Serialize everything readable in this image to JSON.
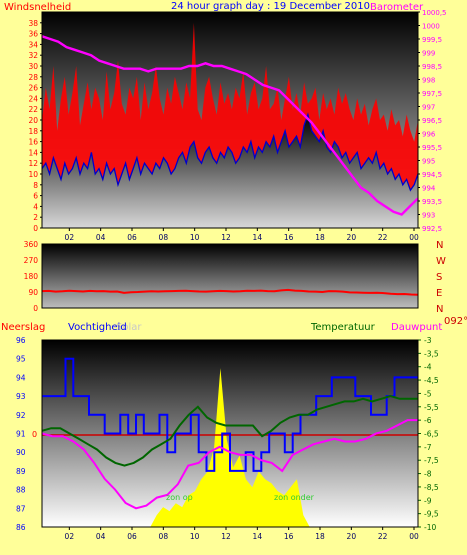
{
  "colors": {
    "background": "#ffff99",
    "windspeed": "#ff0000",
    "windspeed_avg": "#0000cc",
    "barometer": "#ff00ff",
    "wind_direction": "#ff0000",
    "humidity": "#0000ff",
    "temperature": "#006600",
    "dewpoint": "#ff00ff",
    "solar": "#ffff00",
    "zero_line": "#cc0000"
  },
  "chart_data": [
    {
      "type": "line",
      "title": "24 hour graph day : 19 December 2010",
      "left_axis_label": "Windsnelheid",
      "right_axis_label": "Barometer",
      "x_ticks": [
        "02",
        "04",
        "06",
        "08",
        "10",
        "12",
        "14",
        "16",
        "18",
        "20",
        "22",
        "00"
      ],
      "left_ticks": [
        "0",
        "2",
        "4",
        "6",
        "8",
        "10",
        "12",
        "14",
        "16",
        "18",
        "20",
        "22",
        "24",
        "26",
        "28",
        "30",
        "32",
        "34",
        "36",
        "38"
      ],
      "right_ticks": [
        "992,5",
        "993",
        "993,5",
        "994",
        "994,5",
        "995",
        "995,5",
        "996",
        "996,5",
        "997",
        "997,5",
        "998",
        "998,5",
        "999",
        "999,5",
        "1000",
        "1000,5"
      ],
      "ylim_left": [
        0,
        40
      ],
      "ylim_right": [
        992.5,
        1000.5
      ],
      "series": [
        {
          "name": "Windsnelheid",
          "kind": "gust",
          "values": [
            20,
            26,
            22,
            30,
            18,
            24,
            28,
            21,
            25,
            30,
            19,
            23,
            27,
            22,
            26,
            24,
            20,
            29,
            22,
            25,
            31,
            23,
            21,
            26,
            24,
            28,
            20,
            27,
            22,
            25,
            30,
            24,
            21,
            26,
            23,
            28,
            25,
            22,
            27,
            24,
            38,
            22,
            20,
            26,
            28,
            24,
            21,
            27,
            23,
            25,
            22,
            26,
            24,
            29,
            21,
            25,
            27,
            22,
            24,
            30,
            22,
            23,
            26,
            20,
            24,
            28,
            22,
            25,
            21,
            27,
            23,
            24,
            26,
            20,
            25,
            22,
            24,
            21,
            26,
            23,
            25,
            22,
            20,
            24,
            21,
            23,
            19,
            22,
            24,
            20,
            21,
            18,
            22,
            19,
            20,
            17,
            21,
            18,
            16,
            20
          ]
        },
        {
          "name": "Windsnelheid",
          "kind": "average",
          "values": [
            11,
            12,
            10,
            13,
            11,
            9,
            12,
            10,
            11,
            13,
            10,
            12,
            11,
            14,
            10,
            11,
            9,
            12,
            10,
            11,
            8,
            10,
            12,
            9,
            11,
            13,
            10,
            12,
            11,
            10,
            12,
            11,
            13,
            12,
            10,
            11,
            13,
            14,
            12,
            15,
            16,
            13,
            12,
            14,
            15,
            13,
            12,
            14,
            13,
            15,
            14,
            12,
            13,
            15,
            14,
            16,
            13,
            15,
            14,
            16,
            15,
            17,
            14,
            16,
            18,
            15,
            16,
            17,
            15,
            19,
            21,
            18,
            17,
            16,
            18,
            15,
            14,
            16,
            15,
            13,
            14,
            12,
            13,
            14,
            11,
            12,
            13,
            12,
            14,
            11,
            12,
            10,
            11,
            9,
            10,
            8,
            9,
            7,
            8,
            10
          ]
        },
        {
          "name": "Barometer",
          "values": [
            999.6,
            999.5,
            999.4,
            999.2,
            999.1,
            999.0,
            998.9,
            998.7,
            998.6,
            998.5,
            998.4,
            998.4,
            998.4,
            998.3,
            998.4,
            998.4,
            998.4,
            998.4,
            998.5,
            998.5,
            998.6,
            998.5,
            998.5,
            998.4,
            998.3,
            998.2,
            998.0,
            997.8,
            997.7,
            997.6,
            997.3,
            997.0,
            996.7,
            996.4,
            996.0,
            995.6,
            995.2,
            994.8,
            994.4,
            994.0,
            993.8,
            993.5,
            993.3,
            993.1,
            993.0,
            993.3,
            993.6
          ]
        }
      ]
    },
    {
      "type": "line",
      "left_ticks": [
        "0",
        "90",
        "180",
        "270",
        "360"
      ],
      "ylim": [
        0,
        360
      ],
      "compass_labels": [
        "N",
        "W",
        "S",
        "E",
        "N"
      ],
      "current_direction": "092°",
      "series": [
        {
          "name": "Wind direction",
          "values": [
            95,
            96,
            92,
            94,
            97,
            95,
            93,
            96,
            94,
            95,
            92,
            93,
            85,
            89,
            90,
            92,
            94,
            93,
            94,
            95,
            96,
            97,
            95,
            93,
            92,
            94,
            96,
            95,
            93,
            94,
            97,
            96,
            98,
            95,
            94,
            99,
            102,
            98,
            96,
            93,
            92,
            90,
            95,
            94,
            92,
            88,
            87,
            86,
            85,
            86,
            84,
            80,
            78,
            79,
            76,
            75
          ]
        }
      ]
    },
    {
      "type": "line",
      "labels": {
        "rain": "Neerslag",
        "humidity": "Vochtigheid",
        "solar": "Solar",
        "temperature": "Temperatuur",
        "dewpoint": "Dauwpunt",
        "sunrise": "zon op",
        "sunset": "zon onder"
      },
      "left_ticks": [
        "86",
        "87",
        "88",
        "89",
        "90",
        "91",
        "92",
        "93",
        "94",
        "95",
        "96"
      ],
      "ylim_left": [
        86,
        96
      ],
      "rain_value": "0",
      "right_ticks": [
        "-3",
        "-3,5",
        "-4",
        "-4,5",
        "-5",
        "-5,5",
        "-6",
        "-6,5",
        "-7",
        "-7,5",
        "-8",
        "-8,5",
        "-9",
        "-9,5",
        "-10"
      ],
      "ylim_right": [
        -10,
        -3
      ],
      "series": [
        {
          "name": "Vochtigheid",
          "values": [
            93,
            93,
            93,
            95,
            93,
            93,
            92,
            92,
            91,
            91,
            92,
            91,
            92,
            91,
            91,
            92,
            90,
            91,
            91,
            92,
            90,
            89,
            90,
            91,
            89,
            89,
            90,
            89,
            90,
            91,
            91,
            90,
            91,
            92,
            92,
            93,
            93,
            94,
            94,
            94,
            93,
            93,
            92,
            92,
            93,
            94,
            94,
            94
          ]
        },
        {
          "name": "Temperatuur",
          "values": [
            -6.4,
            -6.3,
            -6.3,
            -6.5,
            -6.7,
            -6.9,
            -7.1,
            -7.4,
            -7.6,
            -7.7,
            -7.6,
            -7.4,
            -7.1,
            -6.9,
            -6.7,
            -6.2,
            -5.8,
            -5.5,
            -5.9,
            -6.1,
            -6.2,
            -6.2,
            -6.2,
            -6.2,
            -6.6,
            -6.4,
            -6.1,
            -5.9,
            -5.8,
            -5.8,
            -5.6,
            -5.5,
            -5.4,
            -5.3,
            -5.3,
            -5.2,
            -5.3,
            -5.2,
            -5.1,
            -5.2,
            -5.2,
            -5.2
          ]
        },
        {
          "name": "Dauwpunt",
          "values": [
            -6.5,
            -6.6,
            -6.6,
            -6.8,
            -7.1,
            -7.6,
            -8.2,
            -8.6,
            -9.1,
            -9.3,
            -9.2,
            -8.9,
            -8.8,
            -8.4,
            -7.7,
            -7.6,
            -7.2,
            -7.0,
            -7.2,
            -7.3,
            -7.3,
            -7.5,
            -7.6,
            -7.9,
            -7.3,
            -7.1,
            -6.9,
            -6.8,
            -6.7,
            -6.8,
            -6.8,
            -6.7,
            -6.5,
            -6.4,
            -6.2,
            -6.0,
            -6.0
          ]
        },
        {
          "name": "Solar",
          "values": [
            0,
            0,
            0,
            0,
            0,
            0,
            0,
            0,
            0,
            0,
            0,
            0,
            0,
            0,
            0,
            0,
            0,
            0,
            3,
            5,
            4,
            6,
            5,
            8,
            9,
            12,
            14,
            20,
            40,
            22,
            15,
            18,
            12,
            10,
            14,
            12,
            11,
            9,
            8,
            10,
            12,
            3,
            0,
            0,
            0,
            0,
            0,
            0,
            0,
            0,
            0,
            0,
            0,
            0,
            0,
            0,
            0,
            0,
            0,
            0
          ]
        }
      ]
    }
  ]
}
